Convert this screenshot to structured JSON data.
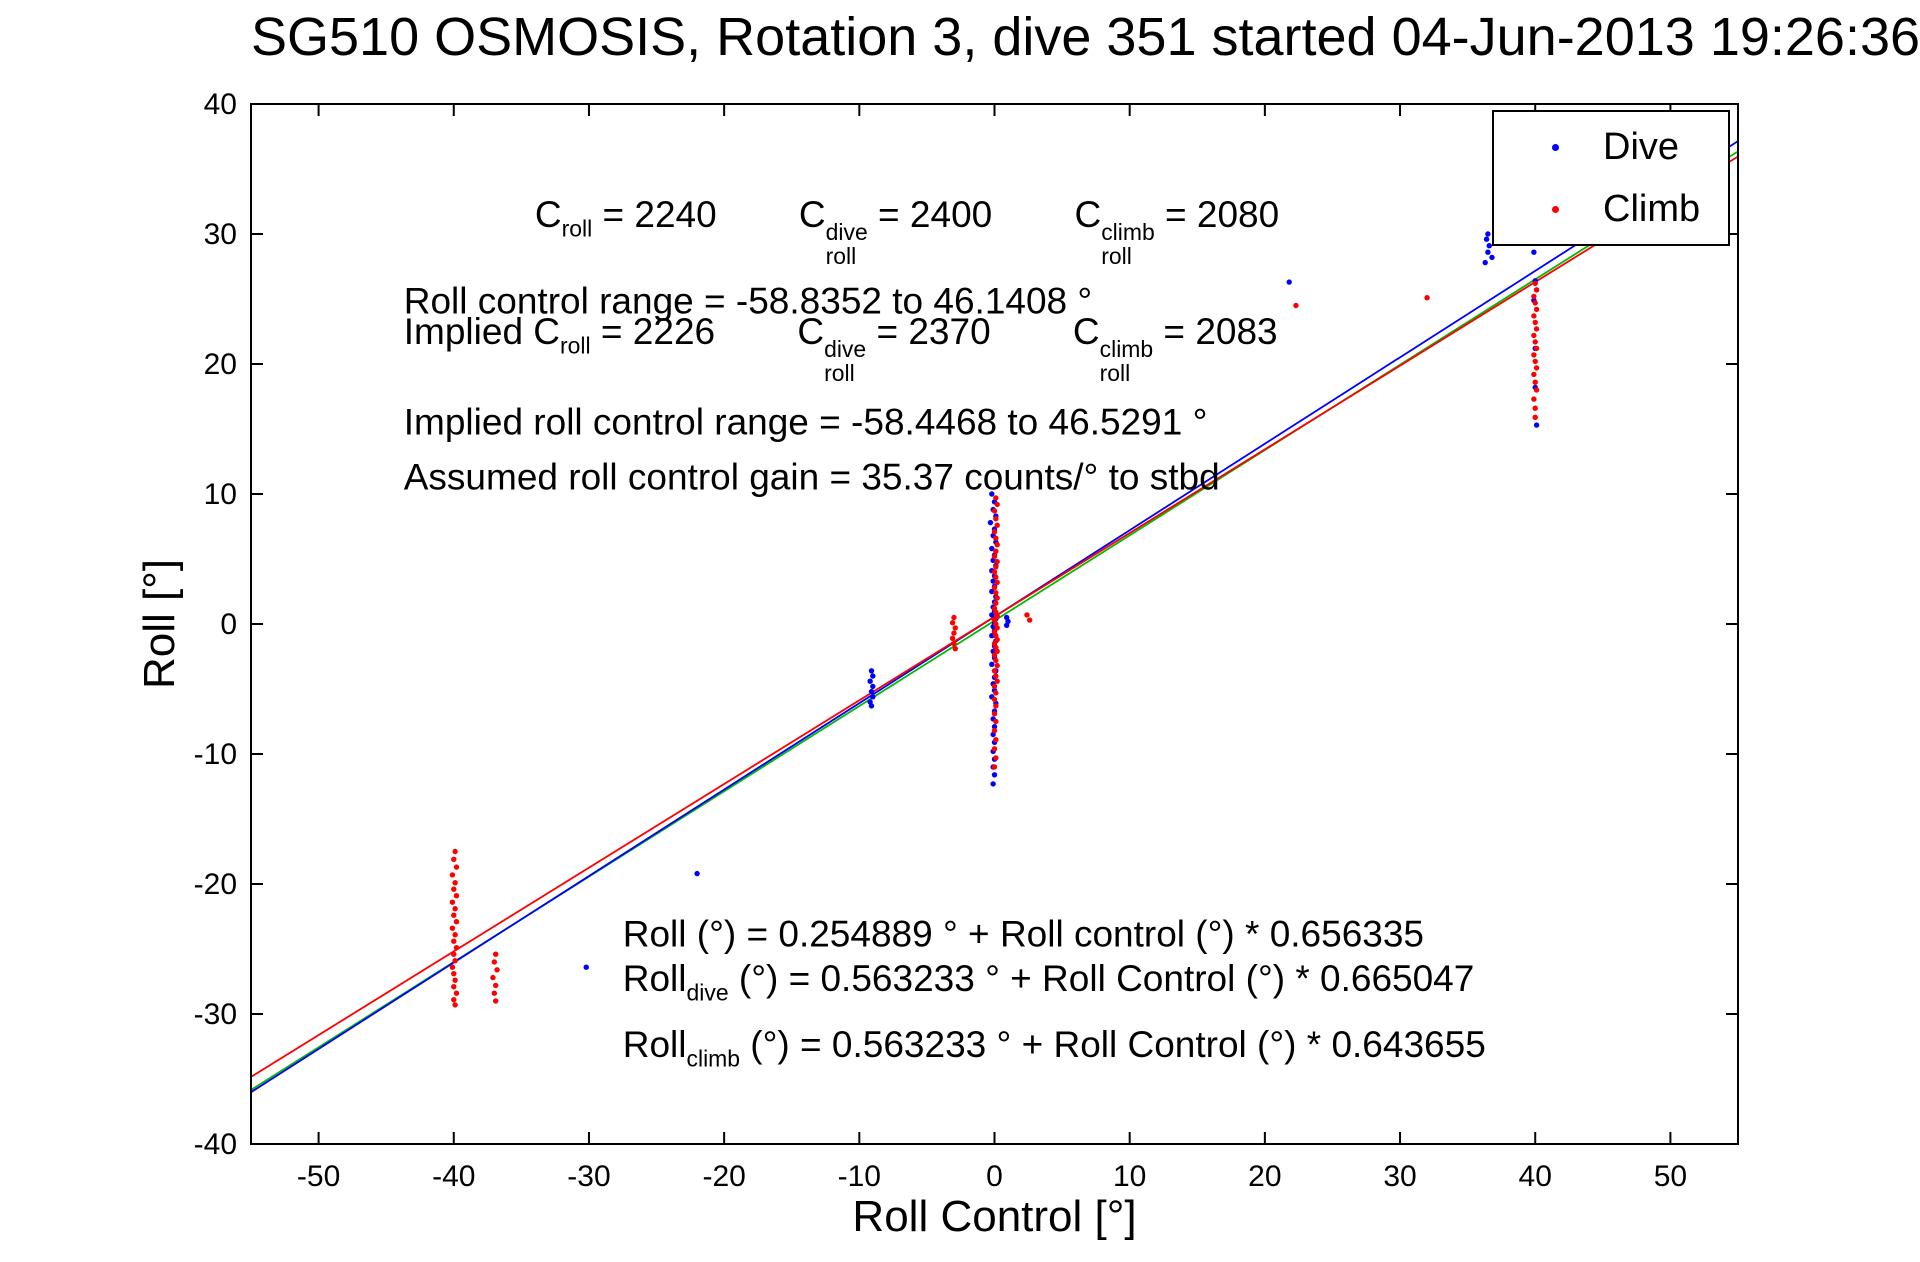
{
  "title": "SG510 OSMOSIS, Rotation 3, dive 351 started 04-Jun-2013 19:26:36",
  "chart_data": {
    "type": "scatter",
    "xlabel": "Roll Control [°]",
    "ylabel": "Roll [°]",
    "xlim": [
      -55,
      55
    ],
    "ylim": [
      -40,
      40
    ],
    "xticks": [
      -50,
      -40,
      -30,
      -20,
      -10,
      0,
      10,
      20,
      30,
      40,
      50
    ],
    "yticks": [
      -40,
      -30,
      -20,
      -10,
      0,
      10,
      20,
      30,
      40
    ],
    "grid": false,
    "legend_position": "top-right",
    "legend": [
      {
        "label": "Dive",
        "color": "#0000ff"
      },
      {
        "label": "Climb",
        "color": "#ff0000"
      }
    ],
    "fit_lines": [
      {
        "name": "combined",
        "color": "#00bb00",
        "intercept": 0.254889,
        "slope": 0.656335
      },
      {
        "name": "dive",
        "color": "#0000ff",
        "intercept": 0.563233,
        "slope": 0.665047
      },
      {
        "name": "climb",
        "color": "#ff0000",
        "intercept": 0.563233,
        "slope": 0.643655
      }
    ],
    "series": [
      {
        "name": "Dive",
        "color": "#0000ff",
        "points": [
          [
            -0.2,
            10.0
          ],
          [
            0.0,
            9.4
          ],
          [
            -0.1,
            8.8
          ],
          [
            0.1,
            8.3
          ],
          [
            -0.3,
            7.8
          ],
          [
            0.0,
            7.3
          ],
          [
            -0.1,
            6.8
          ],
          [
            0.1,
            6.3
          ],
          [
            -0.2,
            5.8
          ],
          [
            0.0,
            5.3
          ],
          [
            -0.1,
            4.9
          ],
          [
            0.1,
            4.5
          ],
          [
            -0.2,
            4.1
          ],
          [
            0.0,
            3.7
          ],
          [
            -0.1,
            3.3
          ],
          [
            0.0,
            2.9
          ],
          [
            -0.2,
            2.5
          ],
          [
            0.1,
            2.1
          ],
          [
            0.0,
            1.7
          ],
          [
            -0.1,
            1.3
          ],
          [
            0.0,
            1.0
          ],
          [
            -0.2,
            0.7
          ],
          [
            0.1,
            0.4
          ],
          [
            0.0,
            0.1
          ],
          [
            -0.1,
            -0.2
          ],
          [
            0.0,
            -0.5
          ],
          [
            -0.2,
            -0.9
          ],
          [
            0.1,
            -1.3
          ],
          [
            0.0,
            -1.7
          ],
          [
            -0.1,
            -2.1
          ],
          [
            0.0,
            -2.6
          ],
          [
            -0.2,
            -3.1
          ],
          [
            0.1,
            -3.6
          ],
          [
            0.0,
            -4.1
          ],
          [
            -0.1,
            -4.6
          ],
          [
            0.0,
            -5.1
          ],
          [
            -0.2,
            -5.6
          ],
          [
            0.1,
            -6.1
          ],
          [
            0.0,
            -6.7
          ],
          [
            -0.1,
            -7.3
          ],
          [
            0.0,
            -7.9
          ],
          [
            -0.1,
            -8.5
          ],
          [
            0.0,
            -9.1
          ],
          [
            -0.1,
            -9.8
          ],
          [
            0.0,
            -10.4
          ],
          [
            -0.1,
            -11.0
          ],
          [
            0.0,
            -11.6
          ],
          [
            -0.1,
            -12.3
          ],
          [
            0.9,
            0.5
          ],
          [
            1.0,
            0.2
          ],
          [
            0.9,
            -0.1
          ],
          [
            -9.1,
            -3.6
          ],
          [
            -9.0,
            -4.0
          ],
          [
            -9.2,
            -4.4
          ],
          [
            -9.0,
            -4.8
          ],
          [
            -9.1,
            -5.2
          ],
          [
            -9.0,
            -5.6
          ],
          [
            -9.2,
            -6.0
          ],
          [
            -9.1,
            -6.3
          ],
          [
            -22.0,
            -19.2
          ],
          [
            -30.2,
            -26.4
          ],
          [
            21.8,
            26.3
          ],
          [
            36.4,
            29.6
          ],
          [
            36.6,
            29.1
          ],
          [
            36.5,
            28.6
          ],
          [
            36.8,
            28.2
          ],
          [
            36.3,
            27.8
          ],
          [
            36.5,
            30.0
          ],
          [
            40.0,
            29.3
          ],
          [
            39.9,
            28.6
          ],
          [
            40.0,
            26.4
          ],
          [
            40.1,
            25.7
          ],
          [
            39.9,
            24.9
          ],
          [
            40.0,
            21.2
          ],
          [
            40.0,
            18.2
          ],
          [
            40.1,
            15.3
          ]
        ]
      },
      {
        "name": "Climb",
        "color": "#ff0000",
        "points": [
          [
            0.1,
            9.7
          ],
          [
            0.2,
            9.2
          ],
          [
            0.0,
            8.7
          ],
          [
            0.1,
            8.1
          ],
          [
            0.2,
            7.6
          ],
          [
            0.0,
            7.1
          ],
          [
            0.1,
            6.6
          ],
          [
            0.2,
            6.1
          ],
          [
            0.1,
            5.6
          ],
          [
            0.0,
            5.2
          ],
          [
            0.2,
            4.8
          ],
          [
            0.1,
            4.4
          ],
          [
            0.0,
            4.0
          ],
          [
            0.1,
            3.6
          ],
          [
            0.2,
            3.2
          ],
          [
            0.0,
            2.8
          ],
          [
            0.1,
            2.4
          ],
          [
            0.2,
            2.0
          ],
          [
            0.1,
            1.6
          ],
          [
            0.0,
            1.2
          ],
          [
            0.1,
            0.9
          ],
          [
            0.2,
            0.6
          ],
          [
            0.0,
            0.3
          ],
          [
            0.1,
            0.0
          ],
          [
            0.2,
            -0.3
          ],
          [
            0.0,
            -0.6
          ],
          [
            0.1,
            -0.9
          ],
          [
            0.2,
            -1.2
          ],
          [
            0.0,
            -1.5
          ],
          [
            0.1,
            -1.8
          ],
          [
            0.2,
            -2.1
          ],
          [
            0.0,
            -2.4
          ],
          [
            0.1,
            -2.8
          ],
          [
            0.2,
            -3.2
          ],
          [
            0.0,
            -3.6
          ],
          [
            0.1,
            -4.0
          ],
          [
            0.2,
            -4.4
          ],
          [
            0.0,
            -4.8
          ],
          [
            0.1,
            -5.3
          ],
          [
            0.0,
            -5.8
          ],
          [
            0.1,
            -6.3
          ],
          [
            0.0,
            -6.9
          ],
          [
            0.1,
            -7.5
          ],
          [
            0.0,
            -8.2
          ],
          [
            0.1,
            -8.9
          ],
          [
            0.0,
            -9.6
          ],
          [
            0.1,
            -10.3
          ],
          [
            0.0,
            -11.0
          ],
          [
            -3.0,
            0.5
          ],
          [
            -3.1,
            0.1
          ],
          [
            -2.9,
            -0.3
          ],
          [
            -3.0,
            -0.7
          ],
          [
            -3.1,
            -1.1
          ],
          [
            -3.0,
            -1.5
          ],
          [
            -2.9,
            -1.9
          ],
          [
            2.4,
            0.7
          ],
          [
            2.6,
            0.3
          ],
          [
            -39.9,
            -17.5
          ],
          [
            -40.0,
            -18.1
          ],
          [
            -39.8,
            -18.7
          ],
          [
            -40.1,
            -19.3
          ],
          [
            -39.9,
            -19.9
          ],
          [
            -40.0,
            -20.4
          ],
          [
            -39.8,
            -20.9
          ],
          [
            -40.1,
            -21.4
          ],
          [
            -39.9,
            -21.9
          ],
          [
            -40.0,
            -22.4
          ],
          [
            -39.8,
            -22.9
          ],
          [
            -40.1,
            -23.4
          ],
          [
            -39.9,
            -23.9
          ],
          [
            -40.0,
            -24.4
          ],
          [
            -39.8,
            -24.9
          ],
          [
            -40.0,
            -25.4
          ],
          [
            -39.9,
            -25.9
          ],
          [
            -40.1,
            -26.4
          ],
          [
            -40.0,
            -26.9
          ],
          [
            -39.9,
            -27.4
          ],
          [
            -40.0,
            -27.9
          ],
          [
            -39.8,
            -28.4
          ],
          [
            -40.0,
            -28.9
          ],
          [
            -39.9,
            -29.3
          ],
          [
            -36.9,
            -25.4
          ],
          [
            -37.0,
            -26.0
          ],
          [
            -36.8,
            -26.6
          ],
          [
            -37.1,
            -27.2
          ],
          [
            -36.9,
            -27.8
          ],
          [
            -37.0,
            -28.4
          ],
          [
            -36.9,
            -29.0
          ],
          [
            22.3,
            24.5
          ],
          [
            32.0,
            25.1
          ],
          [
            40.0,
            26.2
          ],
          [
            40.1,
            25.7
          ],
          [
            39.9,
            25.2
          ],
          [
            40.0,
            24.7
          ],
          [
            40.1,
            24.2
          ],
          [
            39.9,
            23.7
          ],
          [
            40.0,
            23.2
          ],
          [
            40.1,
            22.7
          ],
          [
            39.9,
            22.2
          ],
          [
            40.0,
            21.7
          ],
          [
            40.1,
            21.2
          ],
          [
            39.9,
            20.7
          ],
          [
            40.0,
            20.2
          ],
          [
            40.1,
            19.7
          ],
          [
            39.9,
            19.2
          ],
          [
            40.0,
            18.6
          ],
          [
            40.1,
            18.0
          ],
          [
            39.9,
            17.3
          ],
          [
            40.0,
            16.6
          ],
          [
            40.0,
            15.9
          ]
        ]
      }
    ],
    "annotations": [
      {
        "x": -34.0,
        "y": 30.2,
        "segments": [
          {
            "t": "C",
            "sub": "roll"
          },
          {
            "t": " = 2240        "
          },
          {
            "t": "C",
            "sub": "roll",
            "sup": "dive"
          },
          {
            "t": " = 2400        "
          },
          {
            "t": "C",
            "sub": "roll",
            "sup": "climb"
          },
          {
            "t": " = 2080"
          }
        ]
      },
      {
        "x": -43.7,
        "y": 24.8,
        "segments": [
          {
            "t": "Roll control range = -58.8352 to 46.1408 °"
          }
        ]
      },
      {
        "x": -43.7,
        "y": 21.2,
        "segments": [
          {
            "t": "Implied C",
            "sub": "roll"
          },
          {
            "t": " = 2226        "
          },
          {
            "t": "C",
            "sub": "roll",
            "sup": "dive"
          },
          {
            "t": " = 2370        "
          },
          {
            "t": "C",
            "sub": "roll",
            "sup": "climb"
          },
          {
            "t": " = 2083"
          }
        ]
      },
      {
        "x": -43.7,
        "y": 15.5,
        "segments": [
          {
            "t": "Implied roll control range = -58.4468 to 46.5291 °"
          }
        ]
      },
      {
        "x": -43.7,
        "y": 11.2,
        "segments": [
          {
            "t": "Assumed roll control gain = 35.37 counts/° to stbd"
          }
        ]
      },
      {
        "x": -27.5,
        "y": -23.9,
        "segments": [
          {
            "t": "Roll (°) = 0.254889 ° + Roll control (°) * 0.656335"
          }
        ]
      },
      {
        "x": -27.5,
        "y": -27.5,
        "segments": [
          {
            "t": "Roll",
            "sub": "dive"
          },
          {
            "t": " (°) = 0.563233 ° + Roll Control (°) * 0.665047"
          }
        ]
      },
      {
        "x": -27.5,
        "y": -32.6,
        "segments": [
          {
            "t": "Roll",
            "sub": "climb"
          },
          {
            "t": " (°) = 0.563233 ° + Roll Control (°) * 0.643655"
          }
        ]
      }
    ]
  }
}
